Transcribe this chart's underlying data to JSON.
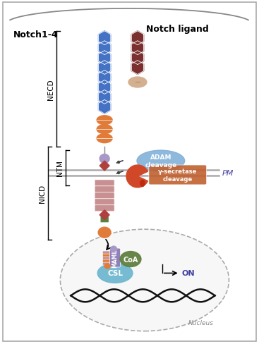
{
  "bg_color": "#ffffff",
  "border_color": "#aaaaaa",
  "notch14_label": "Notch1-4",
  "notch_ligand_label": "Notch ligand",
  "NECD_label": "NECD",
  "NTM_label": "NTM",
  "NICD_label": "NICD",
  "PM_label": "PM",
  "nucleus_label": "Nucleus",
  "ON_label": "ON",
  "ADAM_label": "ADAM\ncleavage",
  "gamma_label": "γ-secretase\ncleavage",
  "CSL_label": "CSL",
  "MAML_label": "MAML",
  "CoA_label": "CoA",
  "notch_blue_color": "#4472c4",
  "notch_red_color": "#7B3030",
  "orange_color": "#E07B39",
  "pink_color": "#C89090",
  "purple_color": "#9080B8",
  "green_color": "#5A8040",
  "lightblue_color": "#80B8D8",
  "adam_color": "#80B0D8",
  "gamma_color": "#C06030",
  "csl_color": "#70B8D0",
  "maml_color": "#9080B8",
  "coa_color": "#608040",
  "red_diamond_color": "#B04040",
  "tan_color": "#D4B090",
  "lavender_color": "#A898C8",
  "cell_curve_color": "#999999",
  "membrane_color": "#aaaaaa"
}
